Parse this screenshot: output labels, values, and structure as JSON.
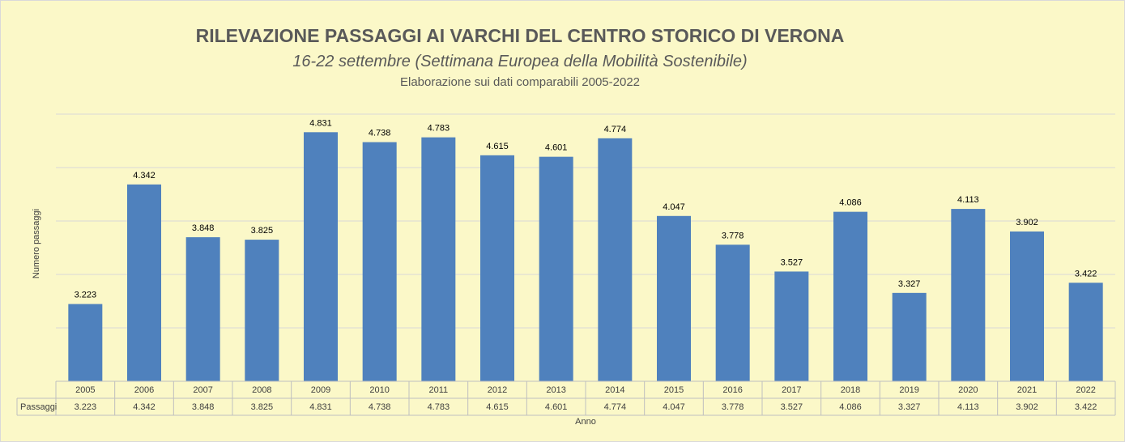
{
  "title": "RILEVAZIONE PASSAGGI AI VARCHI DEL CENTRO STORICO DI VERONA",
  "subtitle": "16-22 settembre  (Settimana Europea della Mobilità Sostenibile)",
  "note": "Elaborazione sui dati comparabili 2005-2022",
  "colors": {
    "background": "#fbf8c8",
    "bar": "#4f81bd",
    "grid": "#d9d9d9"
  },
  "chart_data": {
    "type": "bar",
    "title": "RILEVAZIONE PASSAGGI AI VARCHI DEL CENTRO STORICO DI VERONA",
    "subtitle": "16-22 settembre  (Settimana Europea della Mobilità Sostenibile)",
    "xlabel": "Anno",
    "ylabel": "Numero passaggi",
    "categories": [
      "2005",
      "2006",
      "2007",
      "2008",
      "2009",
      "2010",
      "2011",
      "2012",
      "2013",
      "2014",
      "2015",
      "2016",
      "2017",
      "2018",
      "2019",
      "2020",
      "2021",
      "2022"
    ],
    "series": [
      {
        "name": "Passaggi",
        "values": [
          3223,
          4342,
          3848,
          3825,
          4831,
          4738,
          4783,
          4615,
          4601,
          4774,
          4047,
          3778,
          3527,
          4086,
          3327,
          4113,
          3902,
          3422
        ],
        "labels": [
          "3.223",
          "4.342",
          "3.848",
          "3.825",
          "4.831",
          "4.738",
          "4.783",
          "4.615",
          "4.601",
          "4.774",
          "4.047",
          "3.778",
          "3.527",
          "4.086",
          "3.327",
          "4.113",
          "3.902",
          "3.422"
        ]
      }
    ],
    "ylim": [
      2500,
      5000
    ],
    "grid": true,
    "legend": "data table below axis"
  }
}
